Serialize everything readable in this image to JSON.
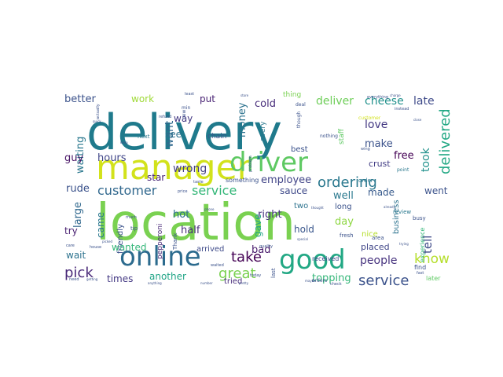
{
  "chart_data": {
    "type": "wordcloud",
    "background": "#ffffff",
    "words": [
      {
        "text": "delivery",
        "weight": 100,
        "color": "#1f7a8c"
      },
      {
        "text": "location",
        "weight": 96,
        "color": "#7ad151"
      },
      {
        "text": "manager",
        "weight": 62,
        "color": "#d2e21b"
      },
      {
        "text": "driver",
        "weight": 46,
        "color": "#5ec962"
      },
      {
        "text": "online",
        "weight": 44,
        "color": "#2c6b8e"
      },
      {
        "text": "good",
        "weight": 42,
        "color": "#22a884"
      },
      {
        "text": "great",
        "weight": 26,
        "color": "#7ad151"
      },
      {
        "text": "service",
        "weight": 26,
        "color": "#3b528b"
      },
      {
        "text": "customer",
        "weight": 24,
        "color": "#31688e"
      },
      {
        "text": "ordering",
        "weight": 24,
        "color": "#2a788e"
      },
      {
        "text": "service",
        "weight": 24,
        "color": "#35b779"
      },
      {
        "text": "delivered",
        "weight": 22,
        "color": "#22a884"
      },
      {
        "text": "take",
        "weight": 22,
        "color": "#440154"
      },
      {
        "text": "pick",
        "weight": 22,
        "color": "#482878"
      },
      {
        "text": "know",
        "weight": 20,
        "color": "#b5de2b"
      },
      {
        "text": "topping",
        "weight": 18,
        "color": "#35b779"
      },
      {
        "text": "cheese",
        "weight": 18,
        "color": "#21918c"
      },
      {
        "text": "late",
        "weight": 18,
        "color": "#3e4a89"
      },
      {
        "text": "wrong",
        "weight": 17,
        "color": "#433e85"
      },
      {
        "text": "money",
        "weight": 16,
        "color": "#2c728e"
      },
      {
        "text": "deliver",
        "weight": 16,
        "color": "#6ece58"
      },
      {
        "text": "cold",
        "weight": 16,
        "color": "#472c7a"
      },
      {
        "text": "want",
        "weight": 16,
        "color": "#31688e"
      },
      {
        "text": "love",
        "weight": 16,
        "color": "#443983"
      },
      {
        "text": "make",
        "weight": 15,
        "color": "#3b528b"
      },
      {
        "text": "people",
        "weight": 16,
        "color": "#46327e"
      },
      {
        "text": "employee",
        "weight": 15,
        "color": "#414487"
      },
      {
        "text": "tell",
        "weight": 16,
        "color": "#3e4a89"
      },
      {
        "text": "took",
        "weight": 16,
        "color": "#21918c"
      },
      {
        "text": "free",
        "weight": 15,
        "color": "#440154"
      },
      {
        "text": "work",
        "weight": 14,
        "color": "#a0da39"
      },
      {
        "text": "better",
        "weight": 14,
        "color": "#3b528b"
      },
      {
        "text": "waiting",
        "weight": 14,
        "color": "#2a788e"
      },
      {
        "text": "large",
        "weight": 14,
        "color": "#31688e"
      },
      {
        "text": "rude",
        "weight": 14,
        "color": "#3b528b"
      },
      {
        "text": "guy",
        "weight": 14,
        "color": "#471365"
      },
      {
        "text": "hours",
        "weight": 14,
        "color": "#404688"
      },
      {
        "text": "star",
        "weight": 14,
        "color": "#482677"
      },
      {
        "text": "see",
        "weight": 14,
        "color": "#2c728e"
      },
      {
        "text": "way",
        "weight": 14,
        "color": "#443983"
      },
      {
        "text": "put",
        "weight": 14,
        "color": "#482173"
      },
      {
        "text": "hot",
        "weight": 14,
        "color": "#2d708e"
      },
      {
        "text": "half",
        "weight": 14,
        "color": "#472d7b"
      },
      {
        "text": "right",
        "weight": 14,
        "color": "#46337f"
      },
      {
        "text": "gave",
        "weight": 13,
        "color": "#20a486"
      },
      {
        "text": "hold",
        "weight": 14,
        "color": "#39568c"
      },
      {
        "text": "sauce",
        "weight": 13,
        "color": "#3e4989"
      },
      {
        "text": "well",
        "weight": 14,
        "color": "#2a788e"
      },
      {
        "text": "made",
        "weight": 13,
        "color": "#375a8c"
      },
      {
        "text": "went",
        "weight": 13,
        "color": "#3b528b"
      },
      {
        "text": "day",
        "weight": 14,
        "color": "#8fd744"
      },
      {
        "text": "bad",
        "weight": 14,
        "color": "#481a6c"
      },
      {
        "text": "crust",
        "weight": 12,
        "color": "#433e85"
      },
      {
        "text": "came",
        "weight": 12,
        "color": "#2a788e"
      },
      {
        "text": "try",
        "weight": 12,
        "color": "#481f70"
      },
      {
        "text": "wait",
        "weight": 13,
        "color": "#2c728e"
      },
      {
        "text": "wanted",
        "weight": 13,
        "color": "#35b779"
      },
      {
        "text": "times",
        "weight": 13,
        "color": "#443983"
      },
      {
        "text": "another",
        "weight": 13,
        "color": "#20a486"
      },
      {
        "text": "placed",
        "weight": 12,
        "color": "#404688"
      },
      {
        "text": "two",
        "weight": 12,
        "color": "#2c728e"
      },
      {
        "text": "tried",
        "weight": 11,
        "color": "#472c7a"
      },
      {
        "text": "arrived",
        "weight": 11,
        "color": "#3e4a89"
      },
      {
        "text": "nice",
        "weight": 11,
        "color": "#b5de2b"
      },
      {
        "text": "long",
        "weight": 11,
        "color": "#3b528b"
      },
      {
        "text": "business",
        "weight": 10,
        "color": "#2c728e"
      },
      {
        "text": "friendly",
        "weight": 10,
        "color": "#3b528b"
      },
      {
        "text": "pepperoni",
        "weight": 9,
        "color": "#482878"
      },
      {
        "text": "every",
        "weight": 10,
        "color": "#2a788e"
      },
      {
        "text": "thing",
        "weight": 10,
        "color": "#7ad151"
      },
      {
        "text": "best",
        "weight": 9,
        "color": "#3b528b"
      },
      {
        "text": "chain",
        "weight": 9,
        "color": "#3b528b"
      },
      {
        "text": "staff",
        "weight": 9,
        "color": "#5ec962"
      },
      {
        "text": "something",
        "weight": 8,
        "color": "#3b528b"
      },
      {
        "text": "received",
        "weight": 8,
        "color": "#3e4a89"
      },
      {
        "text": "experience",
        "weight": 8,
        "color": "#35b779"
      },
      {
        "text": "later",
        "weight": 8,
        "color": "#5ec962"
      },
      {
        "text": "find",
        "weight": 8,
        "color": "#3b528b"
      },
      {
        "text": "review",
        "weight": 7,
        "color": "#2a788e"
      },
      {
        "text": "busy",
        "weight": 7,
        "color": "#3b528b"
      },
      {
        "text": "area",
        "weight": 7,
        "color": "#3b528b"
      },
      {
        "text": "next",
        "weight": 7,
        "color": "#2a788e"
      },
      {
        "text": "fresh",
        "weight": 7,
        "color": "#3b528b"
      },
      {
        "text": "Thank",
        "weight": 7,
        "color": "#3b528b"
      },
      {
        "text": "tip",
        "weight": 7,
        "color": "#3b528b"
      },
      {
        "text": "order",
        "weight": 7,
        "color": "#2a788e"
      },
      {
        "text": "orders",
        "weight": 6,
        "color": "#3b528b"
      },
      {
        "text": "though",
        "weight": 6,
        "color": "#3b528b"
      },
      {
        "text": "nothing",
        "weight": 6,
        "color": "#3b528b"
      },
      {
        "text": "point",
        "weight": 6,
        "color": "#2a788e"
      },
      {
        "text": "last",
        "weight": 7,
        "color": "#3b528b"
      },
      {
        "text": "min",
        "weight": 6,
        "color": "#3b528b"
      },
      {
        "text": "new",
        "weight": 6,
        "color": "#3b528b"
      },
      {
        "text": "deal",
        "weight": 6,
        "color": "#3b528b"
      },
      {
        "text": "refund",
        "weight": 5,
        "color": "#3b528b"
      },
      {
        "text": "least",
        "weight": 5,
        "color": "#3b528b"
      },
      {
        "text": "actually",
        "weight": 5,
        "color": "#3b528b"
      },
      {
        "text": "quality",
        "weight": 5,
        "color": "#3b528b"
      },
      {
        "text": "house",
        "weight": 5,
        "color": "#3b528b"
      },
      {
        "text": "care",
        "weight": 5,
        "color": "#3b528b"
      },
      {
        "text": "much",
        "weight": 5,
        "color": "#3b528b"
      },
      {
        "text": "taste",
        "weight": 5,
        "color": "#3b528b"
      },
      {
        "text": "price",
        "weight": 5,
        "color": "#3b528b"
      },
      {
        "text": "check",
        "weight": 5,
        "color": "#3b528b"
      },
      {
        "text": "need",
        "weight": 5,
        "color": "#3b528b"
      },
      {
        "text": "today",
        "weight": 5,
        "color": "#3b528b"
      },
      {
        "text": "waited",
        "weight": 5,
        "color": "#3b528b"
      },
      {
        "text": "problem",
        "weight": 5,
        "color": "#3b528b"
      },
      {
        "text": "instead",
        "weight": 5,
        "color": "#3b528b"
      },
      {
        "text": "everything",
        "weight": 5,
        "color": "#3b528b"
      },
      {
        "text": "charge",
        "weight": 4,
        "color": "#3b528b"
      },
      {
        "text": "close",
        "weight": 4,
        "color": "#3b528b"
      },
      {
        "text": "trying",
        "weight": 4,
        "color": "#3b528b"
      },
      {
        "text": "fast",
        "weight": 5,
        "color": "#3b528b"
      },
      {
        "text": "wing",
        "weight": 5,
        "color": "#3b528b"
      },
      {
        "text": "customer",
        "weight": 6,
        "color": "#d2e21b"
      },
      {
        "text": "special",
        "weight": 4,
        "color": "#3b528b"
      },
      {
        "text": "thought",
        "weight": 4,
        "color": "#3b528b"
      },
      {
        "text": "already",
        "weight": 4,
        "color": "#3b528b"
      },
      {
        "text": "store",
        "weight": 4,
        "color": "#3b528b"
      },
      {
        "text": "keep",
        "weight": 4,
        "color": "#3b528b"
      },
      {
        "text": "getting",
        "weight": 4,
        "color": "#3b528b"
      },
      {
        "text": "number",
        "weight": 4,
        "color": "#3b528b"
      },
      {
        "text": "quick",
        "weight": 4,
        "color": "#3b528b"
      },
      {
        "text": "maybe",
        "weight": 4,
        "color": "#3b528b"
      },
      {
        "text": "phone",
        "weight": 4,
        "color": "#3b528b"
      },
      {
        "text": "pretty",
        "weight": 4,
        "color": "#3b528b"
      },
      {
        "text": "picked",
        "weight": 4,
        "color": "#3b528b"
      },
      {
        "text": "anything",
        "weight": 4,
        "color": "#3b528b"
      }
    ]
  }
}
